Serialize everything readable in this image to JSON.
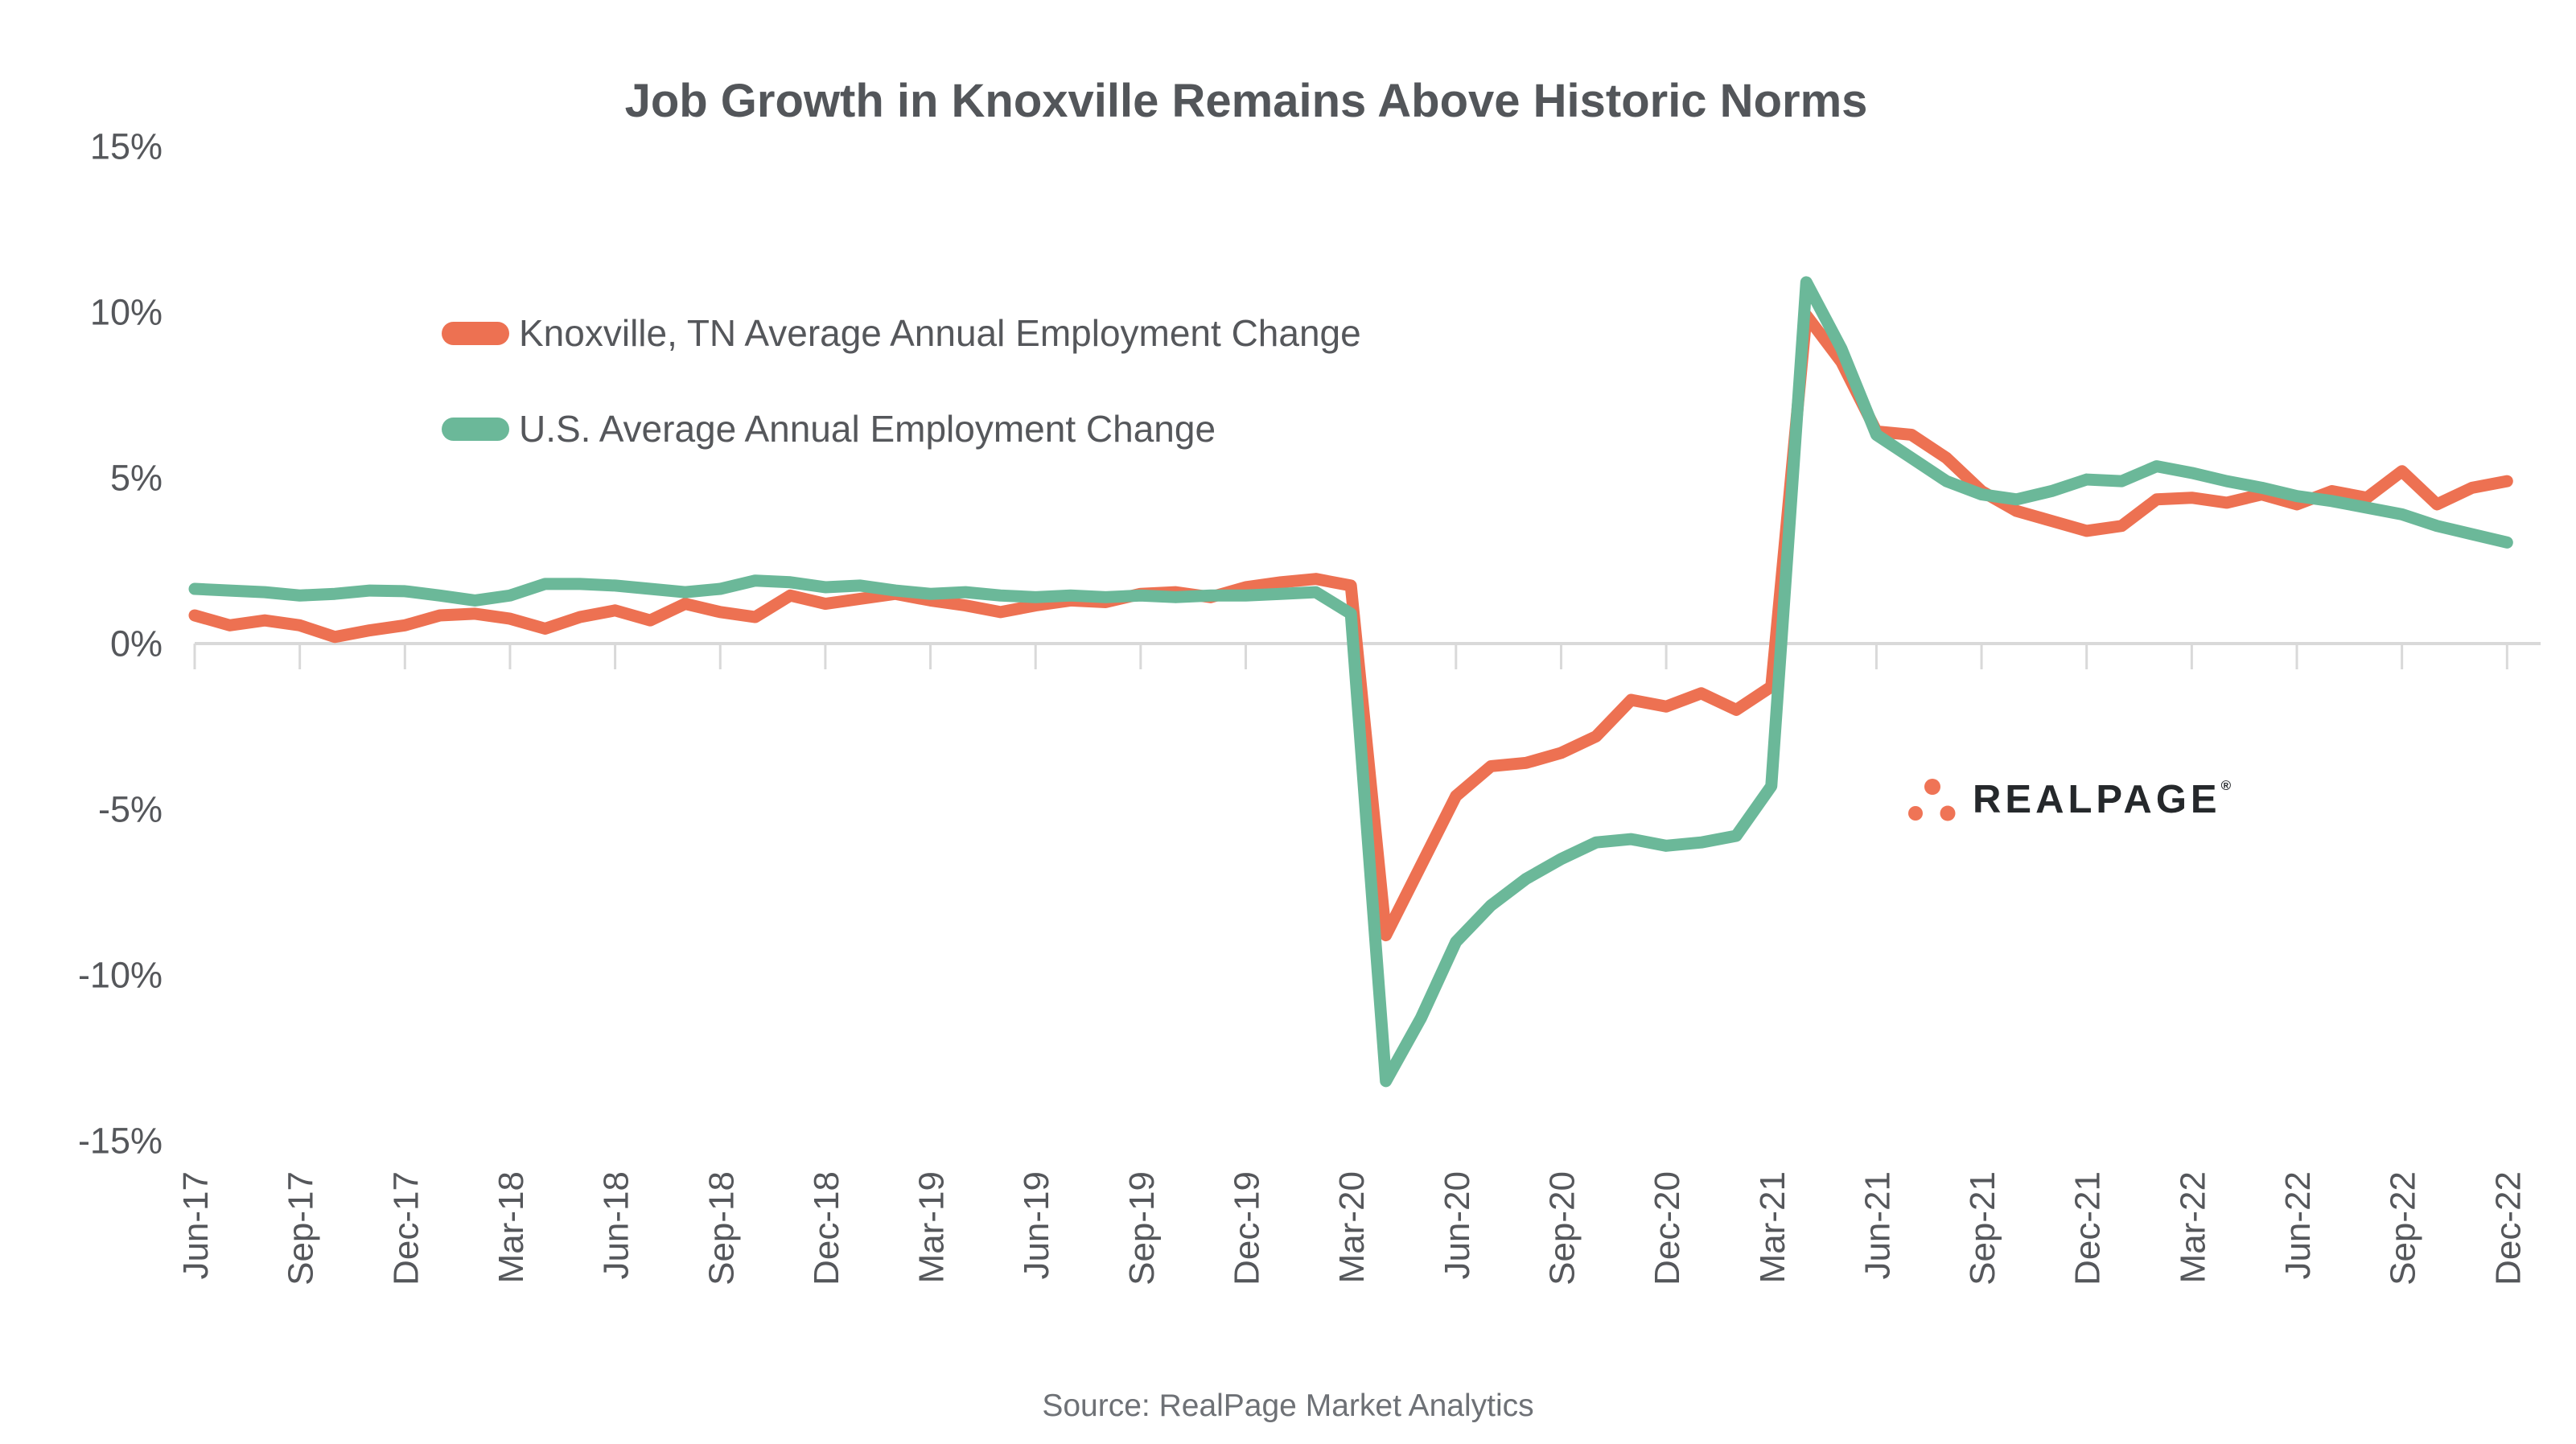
{
  "title": "Job Growth in Knoxville Remains Above Historic Norms",
  "source": "Source: RealPage Market Analytics",
  "logo": {
    "wordmark": "REALPAGE",
    "registered": "®",
    "dot_color": "#EF7456",
    "text_color": "#25282B"
  },
  "legend": [
    {
      "label": "Knoxville, TN Average Annual Employment Change",
      "color": "#ED7152"
    },
    {
      "label": "U.S. Average Annual Employment Change",
      "color": "#6BB899"
    }
  ],
  "chart_data": {
    "type": "line",
    "title": "Job Growth in Knoxville Remains Above Historic Norms",
    "xlabel": "",
    "ylabel": "",
    "ylim": [
      -15,
      15
    ],
    "yticks": [
      15,
      10,
      5,
      0,
      -5,
      -10,
      -15
    ],
    "ytick_suffix": "%",
    "label_every": 3,
    "grid": "zero-line-only",
    "axis_color": "#D9D9D9",
    "text_color": "#55575B",
    "legend_position": "top-left-inside",
    "x": [
      "Jun-17",
      "Jul-17",
      "Aug-17",
      "Sep-17",
      "Oct-17",
      "Nov-17",
      "Dec-17",
      "Jan-18",
      "Feb-18",
      "Mar-18",
      "Apr-18",
      "May-18",
      "Jun-18",
      "Jul-18",
      "Aug-18",
      "Sep-18",
      "Oct-18",
      "Nov-18",
      "Dec-18",
      "Jan-19",
      "Feb-19",
      "Mar-19",
      "Apr-19",
      "May-19",
      "Jun-19",
      "Jul-19",
      "Aug-19",
      "Sep-19",
      "Oct-19",
      "Nov-19",
      "Dec-19",
      "Jan-20",
      "Feb-20",
      "Mar-20",
      "Apr-20",
      "May-20",
      "Jun-20",
      "Jul-20",
      "Aug-20",
      "Sep-20",
      "Oct-20",
      "Nov-20",
      "Dec-20",
      "Jan-21",
      "Feb-21",
      "Mar-21",
      "Apr-21",
      "May-21",
      "Jun-21",
      "Jul-21",
      "Aug-21",
      "Sep-21",
      "Oct-21",
      "Nov-21",
      "Dec-21",
      "Jan-22",
      "Feb-22",
      "Mar-22",
      "Apr-22",
      "May-22",
      "Jun-22",
      "Jul-22",
      "Aug-22",
      "Sep-22",
      "Oct-22",
      "Nov-22",
      "Dec-22"
    ],
    "series": [
      {
        "name": "Knoxville, TN Average Annual Employment Change",
        "color": "#ED7152",
        "values": [
          0.85,
          0.55,
          0.7,
          0.55,
          0.2,
          0.4,
          0.55,
          0.85,
          0.9,
          0.75,
          0.45,
          0.8,
          1.0,
          0.7,
          1.2,
          0.95,
          0.8,
          1.45,
          1.2,
          1.35,
          1.5,
          1.3,
          1.15,
          0.95,
          1.15,
          1.3,
          1.25,
          1.5,
          1.55,
          1.4,
          1.7,
          1.85,
          1.95,
          1.75,
          -8.8,
          -6.7,
          -4.6,
          -3.7,
          -3.6,
          -3.3,
          -2.8,
          -1.7,
          -1.9,
          -1.5,
          -2.0,
          -1.3,
          9.9,
          8.5,
          6.4,
          6.3,
          5.6,
          4.6,
          4.0,
          3.7,
          3.4,
          3.55,
          4.35,
          4.4,
          4.25,
          4.5,
          4.2,
          4.6,
          4.4,
          5.2,
          4.2,
          4.7,
          4.9
        ]
      },
      {
        "name": "U.S. Average Annual Employment Change",
        "color": "#6BB899",
        "values": [
          1.65,
          1.6,
          1.55,
          1.45,
          1.5,
          1.6,
          1.58,
          1.45,
          1.3,
          1.45,
          1.8,
          1.8,
          1.75,
          1.65,
          1.55,
          1.65,
          1.9,
          1.85,
          1.7,
          1.75,
          1.6,
          1.5,
          1.55,
          1.45,
          1.4,
          1.45,
          1.4,
          1.45,
          1.4,
          1.45,
          1.45,
          1.5,
          1.55,
          0.9,
          -13.2,
          -11.3,
          -9.0,
          -7.9,
          -7.1,
          -6.5,
          -6.0,
          -5.9,
          -6.1,
          -6.0,
          -5.8,
          -4.3,
          10.9,
          8.9,
          6.3,
          5.6,
          4.9,
          4.5,
          4.35,
          4.6,
          4.95,
          4.9,
          5.35,
          5.15,
          4.9,
          4.7,
          4.45,
          4.3,
          4.1,
          3.9,
          3.55,
          3.3,
          3.05
        ]
      }
    ]
  }
}
